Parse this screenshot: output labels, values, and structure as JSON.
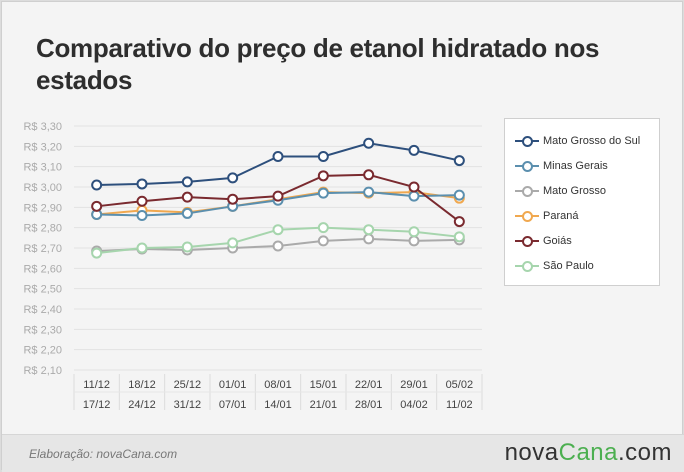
{
  "title": "Comparativo do preço de etanol hidratado nos estados",
  "footer": {
    "credit": "Elaboração: novaCana.com",
    "brand_main": "nova",
    "brand_cana": "Cana",
    "brand_tld": ".com"
  },
  "chart_data": {
    "type": "line",
    "categories_top": [
      "11/12",
      "18/12",
      "25/12",
      "01/01",
      "08/01",
      "15/01",
      "22/01",
      "29/01",
      "05/02"
    ],
    "categories_bottom": [
      "17/12",
      "24/12",
      "31/12",
      "07/01",
      "14/01",
      "21/01",
      "28/01",
      "04/02",
      "11/02"
    ],
    "y_ticks": [
      "R$ 2,10",
      "R$ 2,20",
      "R$ 2,30",
      "R$ 2,40",
      "R$ 2,50",
      "R$ 2,60",
      "R$ 2,70",
      "R$ 2,80",
      "R$ 2,90",
      "R$ 3,00",
      "R$ 3,10",
      "R$ 3,20",
      "R$ 3,30"
    ],
    "ylim": [
      2.1,
      3.3
    ],
    "grid": true,
    "legend_position": "right",
    "series": [
      {
        "name": "Mato Grosso do Sul",
        "color": "#2d4f7c",
        "values": [
          3.01,
          3.015,
          3.025,
          3.045,
          3.15,
          3.15,
          3.215,
          3.18,
          3.13
        ]
      },
      {
        "name": "Minas Gerais",
        "color": "#5b8fae",
        "values": [
          2.865,
          2.86,
          2.87,
          2.905,
          2.935,
          2.97,
          2.975,
          2.955,
          2.96
        ]
      },
      {
        "name": "Mato Grosso",
        "color": "#aaaaaa",
        "values": [
          2.685,
          2.695,
          2.69,
          2.7,
          2.71,
          2.735,
          2.745,
          2.735,
          2.74
        ]
      },
      {
        "name": "Paraná",
        "color": "#f0a84f",
        "values": [
          2.865,
          2.885,
          2.875,
          2.905,
          2.94,
          2.975,
          2.97,
          2.975,
          2.945
        ]
      },
      {
        "name": "Goiás",
        "color": "#7a2a2f",
        "values": [
          2.905,
          2.93,
          2.95,
          2.94,
          2.955,
          3.055,
          3.06,
          3.0,
          2.83
        ]
      },
      {
        "name": "São Paulo",
        "color": "#a6d5ad",
        "values": [
          2.675,
          2.7,
          2.705,
          2.725,
          2.79,
          2.8,
          2.79,
          2.78,
          2.755
        ]
      }
    ]
  }
}
